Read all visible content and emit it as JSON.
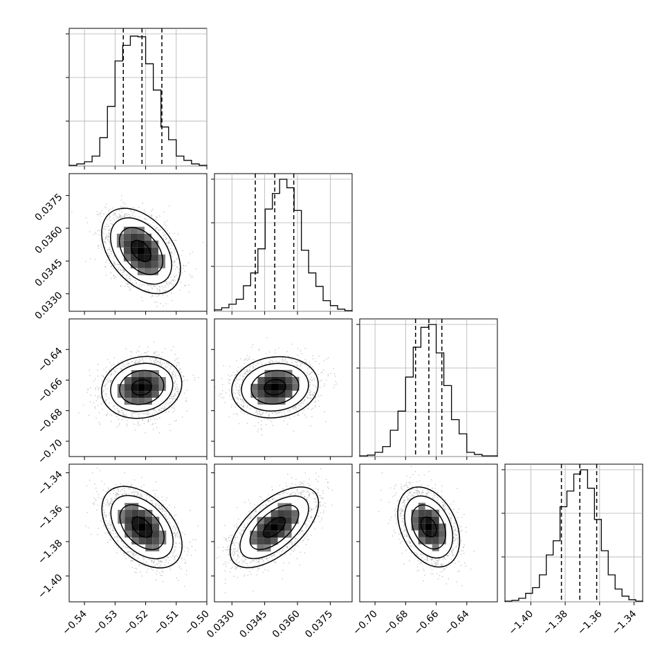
{
  "chart_data": {
    "type": "corner",
    "title": "",
    "grid": true,
    "colors": {
      "hist_line": "#000000",
      "quantile_line": "#000000",
      "grid": "#b0b0b0",
      "scatter": "#9a9a9a",
      "density_dark": "#000000"
    },
    "parameters": [
      {
        "index": 0,
        "range": [
          -0.545,
          -0.5
        ],
        "ticks": [
          -0.54,
          -0.53,
          -0.52,
          -0.51,
          -0.5
        ],
        "tick_labels": [
          "−0.54",
          "−0.53",
          "−0.52",
          "−0.51",
          "−0.50"
        ],
        "quantiles": [
          -0.5273,
          -0.5212,
          -0.5147
        ],
        "hist_counts": [
          1,
          3,
          6,
          14,
          40,
          84,
          148,
          170,
          183,
          182,
          144,
          107,
          55,
          37,
          14,
          8,
          3,
          1
        ],
        "hist_max": 190
      },
      {
        "index": 1,
        "range": [
          0.0322,
          0.0385
        ],
        "ticks": [
          0.033,
          0.0345,
          0.036,
          0.0375
        ],
        "tick_labels": [
          "0.0330",
          "0.0345",
          "0.0360",
          "0.0375"
        ],
        "quantiles": [
          0.03407,
          0.03496,
          0.03583
        ],
        "hist_counts": [
          2,
          5,
          10,
          17,
          36,
          54,
          88,
          144,
          166,
          186,
          174,
          142,
          86,
          54,
          35,
          15,
          8,
          3,
          1
        ],
        "hist_max": 190
      },
      {
        "index": 2,
        "range": [
          -0.71,
          -0.62
        ],
        "ticks": [
          -0.7,
          -0.68,
          -0.66,
          -0.64
        ],
        "tick_labels": [
          "−0.70",
          "−0.68",
          "−0.66",
          "−0.64"
        ],
        "quantiles": [
          -0.6735,
          -0.6648,
          -0.6563
        ],
        "hist_counts": [
          1,
          2,
          6,
          14,
          37,
          64,
          112,
          154,
          182,
          186,
          146,
          100,
          52,
          32,
          6,
          3,
          1,
          1
        ],
        "hist_max": 190
      },
      {
        "index": 3,
        "range": [
          -1.415,
          -1.335
        ],
        "ticks": [
          -1.4,
          -1.38,
          -1.36,
          -1.34
        ],
        "tick_labels": [
          "−1.40",
          "−1.38",
          "−1.36",
          "−1.34"
        ],
        "quantiles": [
          -1.3822,
          -1.3715,
          -1.3617
        ],
        "hist_counts": [
          1,
          2,
          5,
          12,
          20,
          38,
          66,
          86,
          134,
          156,
          180,
          186,
          160,
          116,
          72,
          38,
          18,
          8,
          3,
          1
        ],
        "hist_max": 190
      }
    ],
    "pairs": [
      {
        "x": 0,
        "y": 1,
        "center": [
          -0.5215,
          0.03496
        ],
        "std": [
          0.0056,
          0.00085
        ],
        "corr": -0.42
      },
      {
        "x": 0,
        "y": 2,
        "center": [
          -0.5213,
          -0.6648
        ],
        "std": [
          0.0057,
          0.0088
        ],
        "corr": 0.12
      },
      {
        "x": 1,
        "y": 2,
        "center": [
          0.03497,
          -0.6647
        ],
        "std": [
          0.00086,
          0.0087
        ],
        "corr": 0.1
      },
      {
        "x": 0,
        "y": 3,
        "center": [
          -0.5212,
          -1.3716
        ],
        "std": [
          0.0057,
          0.0103
        ],
        "corr": -0.45
      },
      {
        "x": 1,
        "y": 3,
        "center": [
          0.03494,
          -1.3717
        ],
        "std": [
          0.00088,
          0.0102
        ],
        "corr": 0.6
      },
      {
        "x": 2,
        "y": 3,
        "center": [
          -0.6649,
          -1.3715
        ],
        "std": [
          0.0088,
          0.0101
        ],
        "corr": -0.33
      }
    ]
  }
}
